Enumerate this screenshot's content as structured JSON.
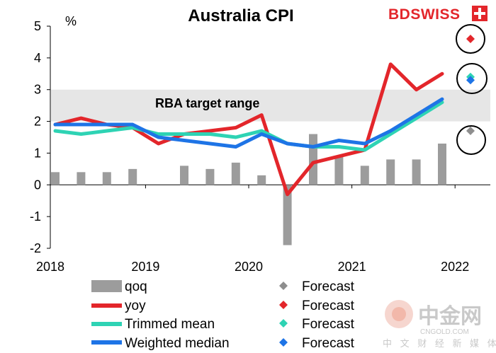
{
  "brand": "BDSWISS",
  "watermark": {
    "name": "中金网",
    "url": "CNGOLD.COM",
    "tagline": "中 文 财 经 新 媒 体"
  },
  "colors": {
    "qoq": "#9c9c9c",
    "yoy": "#e3262b",
    "trimmed": "#2ed3b4",
    "weighted": "#1e74e6",
    "forecast_qoq": "#8e8e8e",
    "band": "#e6e6e6",
    "brand": "#e3262b"
  },
  "chart_data": {
    "type": "bar+line",
    "title": "Australia  CPI",
    "ylabel": "%",
    "ylim": [
      -2,
      5
    ],
    "yticks": [
      "-2",
      "-1",
      "0",
      "1",
      "2",
      "3",
      "4",
      "5"
    ],
    "xtick_labels": [
      "2018",
      "2019",
      "2020",
      "2021",
      "2022"
    ],
    "x_quarters": [
      "2018Q1",
      "2018Q2",
      "2018Q3",
      "2018Q4",
      "2019Q1",
      "2019Q2",
      "2019Q3",
      "2019Q4",
      "2020Q1",
      "2020Q2",
      "2020Q3",
      "2020Q4",
      "2021Q1",
      "2021Q2",
      "2021Q3",
      "2021Q4"
    ],
    "target_band": {
      "label": "RBA target range",
      "from": 2,
      "to": 3
    },
    "series": [
      {
        "name": "qoq",
        "kind": "bar",
        "values": [
          0.4,
          0.4,
          0.4,
          0.5,
          null,
          0.6,
          0.5,
          0.7,
          0.3,
          -1.9,
          1.6,
          0.9,
          0.6,
          0.8,
          0.8,
          1.3
        ]
      },
      {
        "name": "yoy",
        "kind": "line",
        "values": [
          1.9,
          2.1,
          1.9,
          1.8,
          1.3,
          1.6,
          1.7,
          1.8,
          2.2,
          -0.3,
          0.7,
          0.9,
          1.1,
          3.8,
          3.0,
          3.5
        ]
      },
      {
        "name": "Trimmed mean",
        "kind": "line",
        "values": [
          1.7,
          1.6,
          1.7,
          1.8,
          1.6,
          1.6,
          1.6,
          1.5,
          1.7,
          1.3,
          1.2,
          1.2,
          1.1,
          1.6,
          2.1,
          2.6
        ]
      },
      {
        "name": "Weighted median",
        "kind": "line",
        "values": [
          1.9,
          1.9,
          1.9,
          1.9,
          1.5,
          1.4,
          1.3,
          1.2,
          1.6,
          1.3,
          1.2,
          1.4,
          1.3,
          1.7,
          2.2,
          2.7
        ]
      }
    ],
    "forecasts": [
      {
        "series": "qoq",
        "value": 1.7
      },
      {
        "series": "yoy",
        "value": 4.6
      },
      {
        "series": "Trimmed mean",
        "value": 3.4
      },
      {
        "series": "Weighted median",
        "value": 3.3
      }
    ],
    "legend": [
      {
        "label": "qoq",
        "forecast_label": "Forecast"
      },
      {
        "label": "yoy",
        "forecast_label": "Forecast"
      },
      {
        "label": "Trimmed mean",
        "forecast_label": "Forecast"
      },
      {
        "label": "Weighted median",
        "forecast_label": "Forecast"
      }
    ]
  }
}
